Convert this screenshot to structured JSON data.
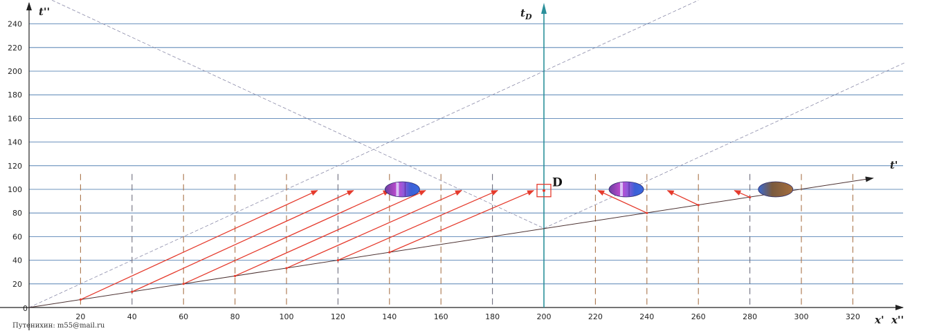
{
  "labels": {
    "y_axis": "t''",
    "td_axis": "t_D",
    "t_prime": "t'",
    "x_axis": "x'  x''",
    "point": "D",
    "origin": "0",
    "credit": "Путенихин: m55@mail.ru"
  },
  "chart_data": {
    "type": "diagram",
    "x_ticks": [
      20,
      40,
      60,
      80,
      100,
      120,
      140,
      160,
      180,
      200,
      220,
      240,
      260,
      280,
      300,
      320
    ],
    "y_ticks": [
      20,
      40,
      60,
      80,
      100,
      120,
      140,
      160,
      180,
      200,
      220,
      240
    ],
    "xlim": [
      0,
      340
    ],
    "ylim": [
      0,
      250
    ],
    "td_axis_x": 200,
    "point_D": [
      200,
      99
    ],
    "t_prime_line": {
      "from": [
        0,
        0
      ],
      "to": [
        340,
        113
      ]
    },
    "vertical_dashed_lines_x": [
      20,
      40,
      60,
      80,
      100,
      120,
      140,
      160,
      180,
      220,
      240,
      260,
      280,
      300,
      320
    ],
    "vertical_dashed_top": 113,
    "light_cone_lines": [
      {
        "from": [
          0,
          0
        ],
        "to": [
          260,
          260
        ]
      },
      {
        "from": [
          5,
          264
        ],
        "to": [
          200,
          67
        ]
      },
      {
        "from": [
          200,
          67
        ],
        "to": [
          340,
          207
        ]
      }
    ],
    "signal_arrows": [
      {
        "from": [
          20,
          6.7
        ],
        "to": [
          112,
          99
        ]
      },
      {
        "from": [
          40,
          13.3
        ],
        "to": [
          126,
          99
        ]
      },
      {
        "from": [
          60,
          20
        ],
        "to": [
          140,
          99
        ]
      },
      {
        "from": [
          80,
          26.7
        ],
        "to": [
          154,
          99
        ]
      },
      {
        "from": [
          100,
          33.3
        ],
        "to": [
          168,
          99
        ]
      },
      {
        "from": [
          120,
          40
        ],
        "to": [
          182,
          99
        ]
      },
      {
        "from": [
          140,
          46.7
        ],
        "to": [
          196,
          99
        ]
      },
      {
        "from": [
          240,
          80
        ],
        "to": [
          221,
          99
        ]
      },
      {
        "from": [
          260,
          86.7
        ],
        "to": [
          248,
          99
        ]
      },
      {
        "from": [
          280,
          93.3
        ],
        "to": [
          274,
          99
        ]
      }
    ],
    "ship_markers": [
      {
        "x": 145,
        "y": 100,
        "kind": "blue-purple"
      },
      {
        "x": 232,
        "y": 100,
        "kind": "blue-purple"
      },
      {
        "x": 290,
        "y": 100,
        "kind": "brown-blue"
      }
    ],
    "colors": {
      "grid": "#3b6fa8",
      "axes": "#222222",
      "td_axis": "#2a8f9a",
      "dashed_verticals": "#a9744a",
      "signals": "#e53a2c",
      "cone": "#8a8aa8"
    }
  }
}
